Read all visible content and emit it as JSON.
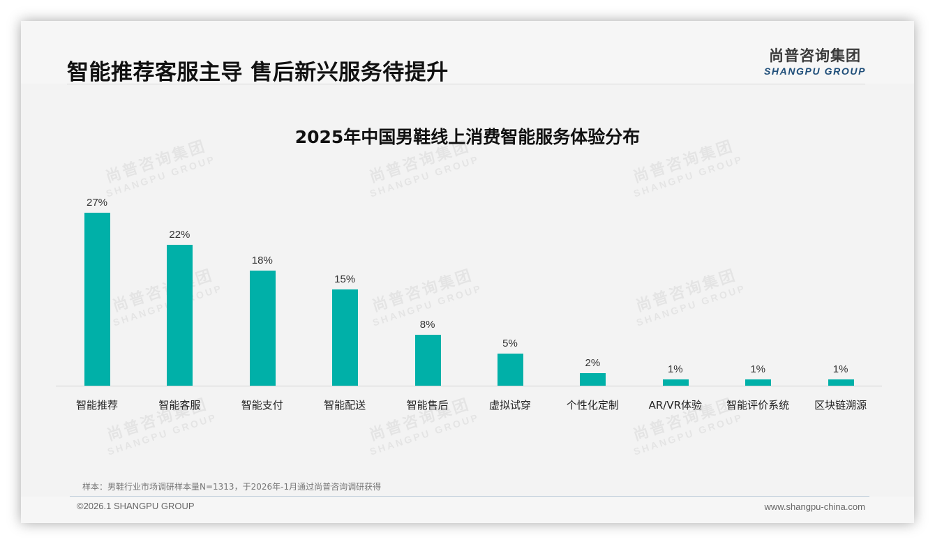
{
  "header": {
    "title": "智能推荐客服主导 售后新兴服务待提升",
    "logo_cn": "尚普咨询集团",
    "logo_en": "SHANGPU GROUP"
  },
  "watermark": {
    "cn": "尚普咨询集团",
    "en": "SHANGPU GROUP"
  },
  "chart": {
    "title": "2025年中国男鞋线上消费智能服务体验分布",
    "bar_color": "#00b0a8"
  },
  "chart_data": {
    "type": "bar",
    "title": "2025年中国男鞋线上消费智能服务体验分布",
    "categories": [
      "智能推荐",
      "智能客服",
      "智能支付",
      "智能配送",
      "智能售后",
      "虚拟试穿",
      "个性化定制",
      "AR/VR体验",
      "智能评价系统",
      "区块链溯源"
    ],
    "values": [
      27,
      22,
      18,
      15,
      8,
      5,
      2,
      1,
      1,
      1
    ],
    "value_labels": [
      "27%",
      "22%",
      "18%",
      "15%",
      "8%",
      "5%",
      "2%",
      "1%",
      "1%",
      "1%"
    ],
    "xlabel": "",
    "ylabel": "",
    "ylim": [
      0,
      27
    ],
    "unit": "%",
    "grid": false,
    "legend": "none",
    "series_color": "#00b0a8"
  },
  "footer": {
    "note": "样本：男鞋行业市场调研样本量N=1313，于2026年-1月通过尚普咨询调研获得",
    "copyright": "©2026.1 SHANGPU GROUP",
    "website": "www.shangpu-china.com"
  }
}
